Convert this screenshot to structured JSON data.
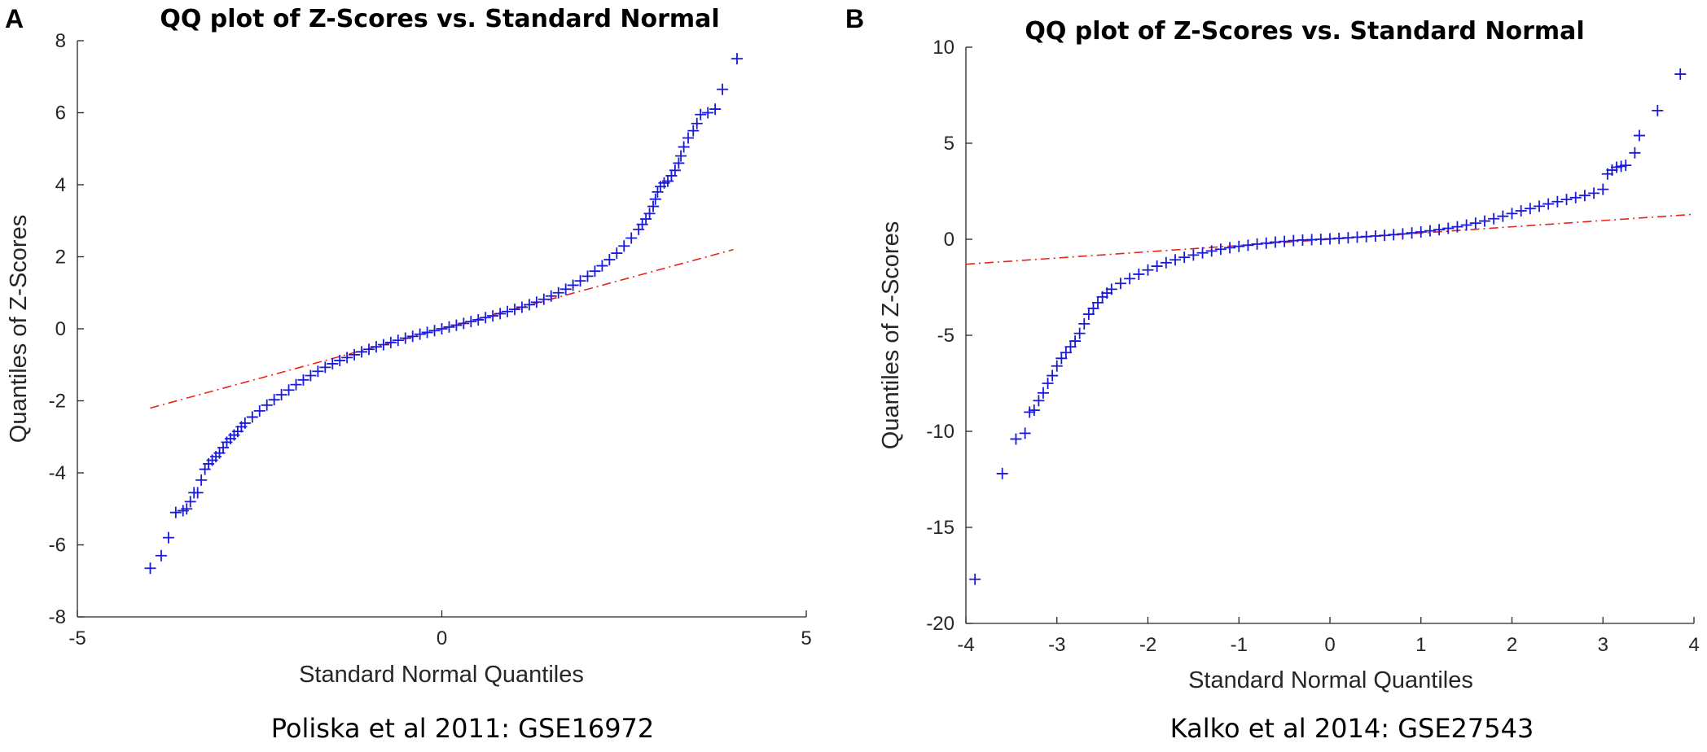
{
  "chart_data": [
    {
      "type": "scatter",
      "panel_label": "A",
      "title": "QQ plot of Z-Scores vs. Standard Normal",
      "xlabel": "Standard Normal Quantiles",
      "ylabel": "Quantiles of Z-Scores",
      "caption": "Poliska et al 2011: GSE16972",
      "xlim": [
        -5,
        5
      ],
      "ylim": [
        -8,
        8
      ],
      "xticks": [
        -5,
        0,
        5
      ],
      "yticks": [
        -8,
        -6,
        -4,
        -2,
        0,
        2,
        4,
        6,
        8
      ],
      "grid": false,
      "marker_color": "#1a1adb",
      "reference_color": "#e8231a",
      "reference_line": {
        "x": [
          -4.0,
          4.0
        ],
        "y": [
          -2.2,
          2.2
        ]
      },
      "series": [
        {
          "name": "Z-Scores",
          "points": [
            [
              -4.0,
              -6.65
            ],
            [
              -3.85,
              -6.3
            ],
            [
              -3.75,
              -5.8
            ],
            [
              -3.65,
              -5.1
            ],
            [
              -3.55,
              -5.05
            ],
            [
              -3.5,
              -5.0
            ],
            [
              -3.45,
              -4.8
            ],
            [
              -3.4,
              -4.55
            ],
            [
              -3.35,
              -4.55
            ],
            [
              -3.3,
              -4.2
            ],
            [
              -3.25,
              -3.9
            ],
            [
              -3.2,
              -3.75
            ],
            [
              -3.15,
              -3.65
            ],
            [
              -3.1,
              -3.55
            ],
            [
              -3.05,
              -3.45
            ],
            [
              -3.0,
              -3.3
            ],
            [
              -2.95,
              -3.15
            ],
            [
              -2.9,
              -3.05
            ],
            [
              -2.85,
              -2.95
            ],
            [
              -2.8,
              -2.85
            ],
            [
              -2.75,
              -2.72
            ],
            [
              -2.7,
              -2.62
            ],
            [
              -2.6,
              -2.45
            ],
            [
              -2.5,
              -2.28
            ],
            [
              -2.4,
              -2.12
            ],
            [
              -2.3,
              -1.97
            ],
            [
              -2.2,
              -1.83
            ],
            [
              -2.1,
              -1.7
            ],
            [
              -2.0,
              -1.55
            ],
            [
              -1.9,
              -1.42
            ],
            [
              -1.8,
              -1.3
            ],
            [
              -1.7,
              -1.18
            ],
            [
              -1.6,
              -1.07
            ],
            [
              -1.5,
              -0.97
            ],
            [
              -1.4,
              -0.88
            ],
            [
              -1.3,
              -0.8
            ],
            [
              -1.2,
              -0.72
            ],
            [
              -1.1,
              -0.64
            ],
            [
              -1.0,
              -0.57
            ],
            [
              -0.9,
              -0.5
            ],
            [
              -0.8,
              -0.44
            ],
            [
              -0.7,
              -0.38
            ],
            [
              -0.6,
              -0.32
            ],
            [
              -0.5,
              -0.26
            ],
            [
              -0.4,
              -0.21
            ],
            [
              -0.3,
              -0.15
            ],
            [
              -0.2,
              -0.1
            ],
            [
              -0.1,
              -0.05
            ],
            [
              0.0,
              0.0
            ],
            [
              0.1,
              0.05
            ],
            [
              0.2,
              0.1
            ],
            [
              0.3,
              0.15
            ],
            [
              0.4,
              0.2
            ],
            [
              0.5,
              0.25
            ],
            [
              0.6,
              0.31
            ],
            [
              0.7,
              0.36
            ],
            [
              0.8,
              0.42
            ],
            [
              0.9,
              0.48
            ],
            [
              1.0,
              0.54
            ],
            [
              1.1,
              0.6
            ],
            [
              1.2,
              0.67
            ],
            [
              1.3,
              0.74
            ],
            [
              1.4,
              0.82
            ],
            [
              1.5,
              0.91
            ],
            [
              1.6,
              1.0
            ],
            [
              1.7,
              1.1
            ],
            [
              1.8,
              1.21
            ],
            [
              1.9,
              1.33
            ],
            [
              2.0,
              1.46
            ],
            [
              2.1,
              1.6
            ],
            [
              2.2,
              1.75
            ],
            [
              2.3,
              1.92
            ],
            [
              2.4,
              2.1
            ],
            [
              2.5,
              2.3
            ],
            [
              2.6,
              2.52
            ],
            [
              2.7,
              2.76
            ],
            [
              2.75,
              2.9
            ],
            [
              2.8,
              3.05
            ],
            [
              2.85,
              3.2
            ],
            [
              2.9,
              3.4
            ],
            [
              2.93,
              3.6
            ],
            [
              2.96,
              3.8
            ],
            [
              3.0,
              3.95
            ],
            [
              3.05,
              4.05
            ],
            [
              3.1,
              4.1
            ],
            [
              3.15,
              4.25
            ],
            [
              3.2,
              4.4
            ],
            [
              3.25,
              4.6
            ],
            [
              3.28,
              4.8
            ],
            [
              3.32,
              5.05
            ],
            [
              3.38,
              5.3
            ],
            [
              3.45,
              5.5
            ],
            [
              3.5,
              5.7
            ],
            [
              3.55,
              5.95
            ],
            [
              3.65,
              6.0
            ],
            [
              3.75,
              6.1
            ],
            [
              3.85,
              6.65
            ],
            [
              4.05,
              7.5
            ]
          ]
        }
      ]
    },
    {
      "type": "scatter",
      "panel_label": "B",
      "title": "QQ plot of Z-Scores vs. Standard Normal",
      "xlabel": "Standard Normal Quantiles",
      "ylabel": "Quantiles of Z-Scores",
      "caption": "Kalko et al 2014: GSE27543",
      "xlim": [
        -4,
        4
      ],
      "ylim": [
        -20,
        10
      ],
      "xticks": [
        -4,
        -3,
        -2,
        -1,
        0,
        1,
        2,
        3,
        4
      ],
      "yticks": [
        -20,
        -15,
        -10,
        -5,
        0,
        5,
        10
      ],
      "grid": false,
      "marker_color": "#1a1adb",
      "reference_color": "#e8231a",
      "reference_line": {
        "x": [
          -4.0,
          4.0
        ],
        "y": [
          -1.3,
          1.3
        ]
      },
      "series": [
        {
          "name": "Z-Scores",
          "points": [
            [
              -3.9,
              -17.7
            ],
            [
              -3.6,
              -12.2
            ],
            [
              -3.45,
              -10.4
            ],
            [
              -3.35,
              -10.1
            ],
            [
              -3.3,
              -9.0
            ],
            [
              -3.25,
              -8.9
            ],
            [
              -3.2,
              -8.4
            ],
            [
              -3.15,
              -8.0
            ],
            [
              -3.1,
              -7.5
            ],
            [
              -3.05,
              -7.1
            ],
            [
              -3.0,
              -6.6
            ],
            [
              -2.95,
              -6.2
            ],
            [
              -2.9,
              -5.9
            ],
            [
              -2.85,
              -5.6
            ],
            [
              -2.8,
              -5.3
            ],
            [
              -2.75,
              -4.9
            ],
            [
              -2.7,
              -4.4
            ],
            [
              -2.65,
              -3.9
            ],
            [
              -2.6,
              -3.6
            ],
            [
              -2.55,
              -3.3
            ],
            [
              -2.5,
              -3.0
            ],
            [
              -2.45,
              -2.8
            ],
            [
              -2.4,
              -2.6
            ],
            [
              -2.3,
              -2.3
            ],
            [
              -2.2,
              -2.05
            ],
            [
              -2.1,
              -1.82
            ],
            [
              -2.0,
              -1.6
            ],
            [
              -1.9,
              -1.4
            ],
            [
              -1.8,
              -1.22
            ],
            [
              -1.7,
              -1.07
            ],
            [
              -1.6,
              -0.94
            ],
            [
              -1.5,
              -0.82
            ],
            [
              -1.4,
              -0.71
            ],
            [
              -1.3,
              -0.61
            ],
            [
              -1.2,
              -0.52
            ],
            [
              -1.1,
              -0.44
            ],
            [
              -1.0,
              -0.37
            ],
            [
              -0.9,
              -0.31
            ],
            [
              -0.8,
              -0.25
            ],
            [
              -0.7,
              -0.2
            ],
            [
              -0.6,
              -0.15
            ],
            [
              -0.5,
              -0.11
            ],
            [
              -0.4,
              -0.07
            ],
            [
              -0.3,
              -0.04
            ],
            [
              -0.2,
              -0.02
            ],
            [
              -0.1,
              0.0
            ],
            [
              0.0,
              0.02
            ],
            [
              0.1,
              0.05
            ],
            [
              0.2,
              0.08
            ],
            [
              0.3,
              0.11
            ],
            [
              0.4,
              0.14
            ],
            [
              0.5,
              0.17
            ],
            [
              0.6,
              0.2
            ],
            [
              0.7,
              0.24
            ],
            [
              0.8,
              0.28
            ],
            [
              0.9,
              0.33
            ],
            [
              1.0,
              0.38
            ],
            [
              1.1,
              0.44
            ],
            [
              1.2,
              0.5
            ],
            [
              1.3,
              0.57
            ],
            [
              1.4,
              0.65
            ],
            [
              1.5,
              0.74
            ],
            [
              1.6,
              0.84
            ],
            [
              1.7,
              0.95
            ],
            [
              1.8,
              1.07
            ],
            [
              1.9,
              1.2
            ],
            [
              2.0,
              1.34
            ],
            [
              2.1,
              1.48
            ],
            [
              2.2,
              1.6
            ],
            [
              2.3,
              1.72
            ],
            [
              2.4,
              1.84
            ],
            [
              2.5,
              1.96
            ],
            [
              2.6,
              2.07
            ],
            [
              2.7,
              2.17
            ],
            [
              2.8,
              2.28
            ],
            [
              2.9,
              2.4
            ],
            [
              3.0,
              2.6
            ],
            [
              3.05,
              3.4
            ],
            [
              3.1,
              3.6
            ],
            [
              3.15,
              3.75
            ],
            [
              3.2,
              3.8
            ],
            [
              3.25,
              3.85
            ],
            [
              3.35,
              4.5
            ],
            [
              3.4,
              5.4
            ],
            [
              3.6,
              6.7
            ],
            [
              3.85,
              8.6
            ]
          ]
        }
      ]
    }
  ]
}
